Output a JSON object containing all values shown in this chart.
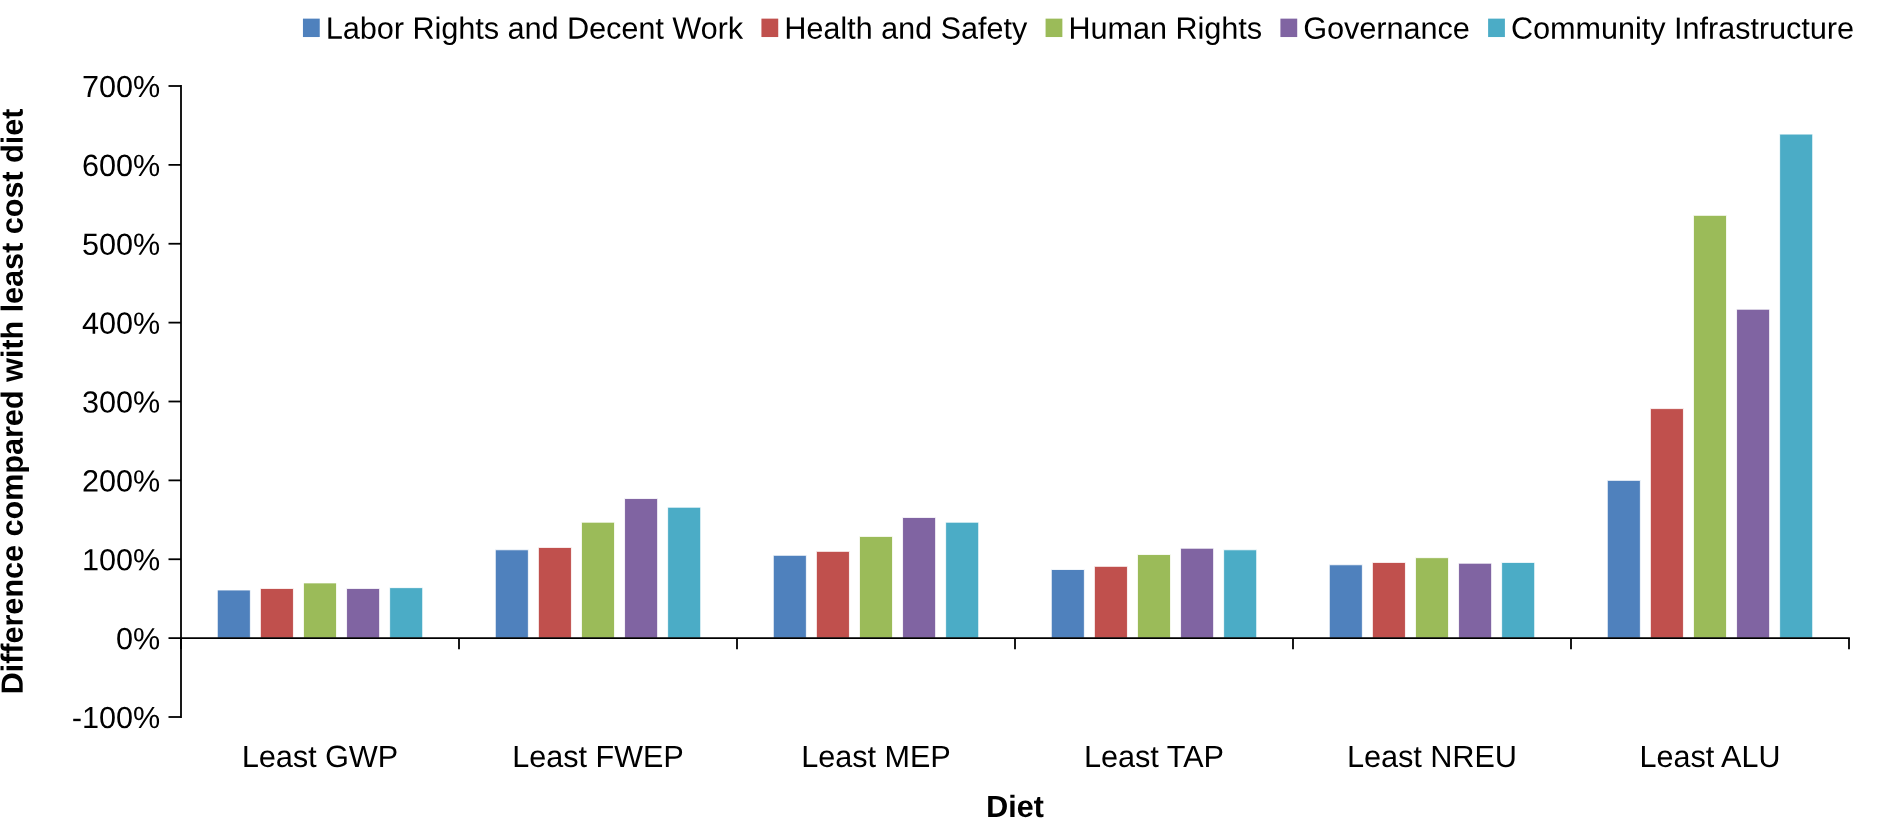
{
  "chart_data": {
    "type": "bar",
    "xlabel": "Diet",
    "ylabel": "Difference compared with least cost diet",
    "categories": [
      "Least GWP",
      "Least FWEP",
      "Least MEP",
      "Least TAP",
      "Least NREU",
      "Least ALU"
    ],
    "series": [
      {
        "name": "Labor Rights and Decent Work",
        "color": "#4f81bd",
        "values": [
          61,
          112,
          105,
          87,
          93,
          200
        ]
      },
      {
        "name": "Health and Safety",
        "color": "#c0504d",
        "values": [
          63,
          115,
          110,
          91,
          96,
          291
        ]
      },
      {
        "name": "Human Rights",
        "color": "#9bbb59",
        "values": [
          70,
          147,
          129,
          106,
          102,
          536
        ]
      },
      {
        "name": "Governance",
        "color": "#8064a2",
        "values": [
          63,
          177,
          153,
          114,
          95,
          417
        ]
      },
      {
        "name": "Community Infrastructure",
        "color": "#4bacc6",
        "values": [
          64,
          166,
          147,
          112,
          96,
          639
        ]
      }
    ],
    "ylim": [
      -100,
      700
    ],
    "yticks": [
      {
        "value": -100,
        "label": "-100%"
      },
      {
        "value": 0,
        "label": "0%"
      },
      {
        "value": 100,
        "label": "100%"
      },
      {
        "value": 200,
        "label": "200%"
      },
      {
        "value": 300,
        "label": "300%"
      },
      {
        "value": 400,
        "label": "400%"
      },
      {
        "value": 500,
        "label": "500%"
      },
      {
        "value": 600,
        "label": "600%"
      },
      {
        "value": 700,
        "label": "700%"
      }
    ],
    "legend": "top right"
  }
}
